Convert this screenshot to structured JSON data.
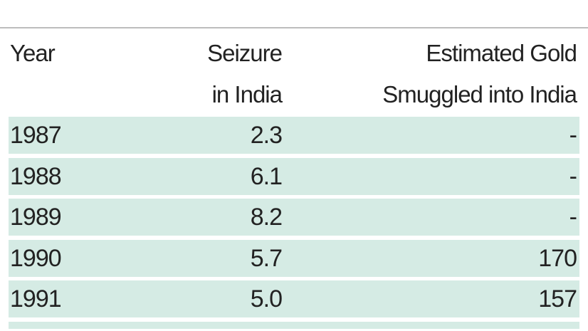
{
  "table": {
    "header": [
      "Year",
      [
        "Seizure",
        "in India"
      ],
      [
        "Estimated Gold",
        "Smuggled into India"
      ]
    ],
    "rows": [
      [
        "1987",
        "2.3",
        "-"
      ],
      [
        "1988",
        "6.1",
        "-"
      ],
      [
        "1989",
        "8.2",
        "-"
      ],
      [
        "1990",
        "5.7",
        "170"
      ],
      [
        "1991",
        "5.0",
        "157"
      ]
    ]
  }
}
